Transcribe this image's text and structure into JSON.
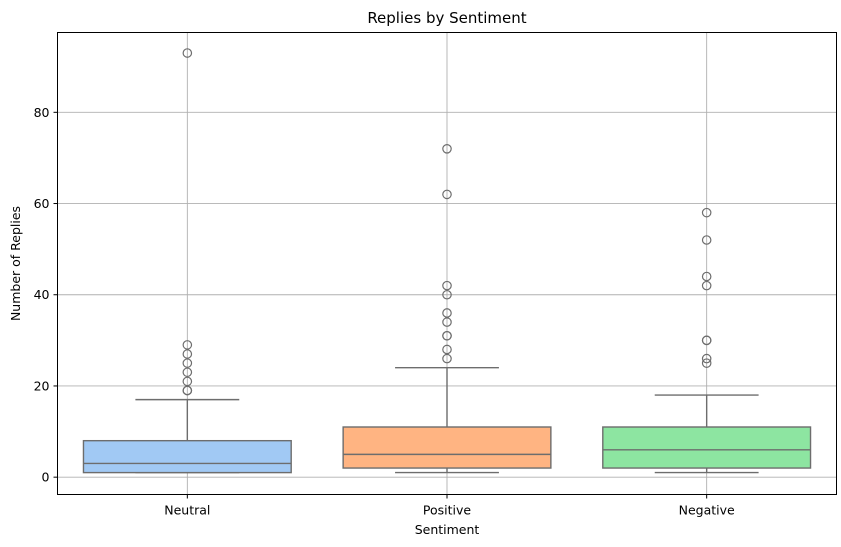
{
  "chart_data": {
    "type": "box",
    "title": "Replies by Sentiment",
    "xlabel": "Sentiment",
    "ylabel": "Number of Replies",
    "ylim": [
      -3.8,
      97.5
    ],
    "yticks": [
      0,
      20,
      40,
      60,
      80
    ],
    "grid": true,
    "categories": [
      "Neutral",
      "Positive",
      "Negative"
    ],
    "boxes": [
      {
        "name": "Neutral",
        "color": "#a1c9f4",
        "whisker_low": 1,
        "q1": 1,
        "median": 3,
        "q3": 8,
        "whisker_high": 17,
        "outliers": [
          19,
          19,
          21,
          23,
          25,
          27,
          29,
          93
        ]
      },
      {
        "name": "Positive",
        "color": "#ffb482",
        "whisker_low": 1,
        "q1": 2,
        "median": 5,
        "q3": 11,
        "whisker_high": 24,
        "outliers": [
          26,
          28,
          31,
          31,
          34,
          36,
          40,
          42,
          62,
          72
        ]
      },
      {
        "name": "Negative",
        "color": "#8de5a1",
        "whisker_low": 1,
        "q1": 2,
        "median": 6,
        "q3": 11,
        "whisker_high": 18,
        "outliers": [
          25,
          26,
          30,
          30,
          42,
          44,
          52,
          58
        ]
      }
    ]
  }
}
